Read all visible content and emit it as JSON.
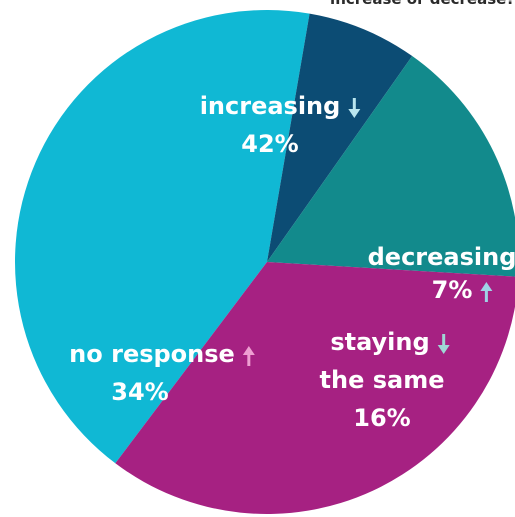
{
  "top_note": "increase or decrease?",
  "chart_data": {
    "type": "pie",
    "title": "",
    "slices": [
      {
        "label": "increasing",
        "value": 42,
        "display": "42%",
        "color": "#10b8d4",
        "arrow": "down",
        "arrow_color": "#b9e6f0"
      },
      {
        "label": "decreasing",
        "value": 7,
        "display": "7%",
        "color": "#0c4c74",
        "arrow": "up",
        "arrow_color": "#9fd3e6"
      },
      {
        "label": "staying the same",
        "value": 16,
        "display": "16%",
        "color": "#128a8c",
        "arrow": "down",
        "arrow_color": "#9fd7d6"
      },
      {
        "label": "no response",
        "value": 34,
        "display": "34%",
        "color": "#a62182",
        "arrow": "up",
        "arrow_color": "#ee9fd2"
      }
    ]
  }
}
